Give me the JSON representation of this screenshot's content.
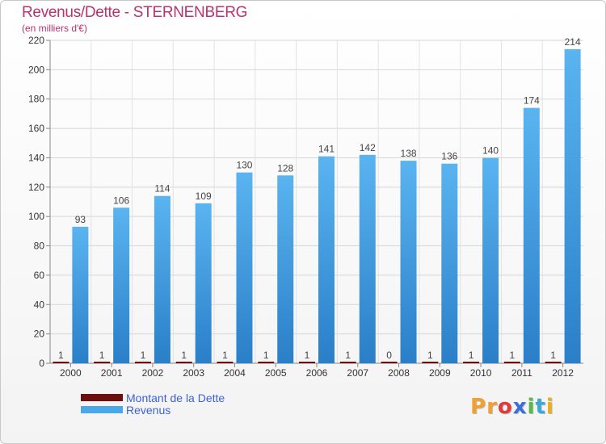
{
  "title": "Revenus/Dette - STERNENBERG",
  "subtitle": "(en milliers d'€)",
  "logo": {
    "letters": [
      "P",
      "r",
      "o",
      "x",
      "i",
      "t",
      "i"
    ],
    "colors": [
      "#f0a030",
      "#f0a030",
      "#e03a3a",
      "#3a6fd8",
      "#58b84a",
      "#3aa8d8",
      "#e8b020"
    ]
  },
  "legend": {
    "debt_label": "Montant de la Dette",
    "revenue_label": "Revenus"
  },
  "colors": {
    "debt": "#6b0f0f",
    "revenue": "#4aa8e8",
    "revenue_dark": "#2a7fc8",
    "title": "#b5336f",
    "legend_text": "#3a62d8"
  },
  "chart_data": {
    "type": "bar",
    "title": "Revenus/Dette - STERNENBERG",
    "subtitle": "(en milliers d'€)",
    "categories": [
      "2000",
      "2001",
      "2002",
      "2003",
      "2004",
      "2005",
      "2006",
      "2007",
      "2008",
      "2009",
      "2010",
      "2011",
      "2012"
    ],
    "series": [
      {
        "name": "Montant de la Dette",
        "values": [
          1,
          1,
          1,
          1,
          1,
          1,
          1,
          1,
          0,
          1,
          1,
          1,
          1
        ]
      },
      {
        "name": "Revenus",
        "values": [
          93,
          106,
          114,
          109,
          130,
          128,
          141,
          142,
          138,
          136,
          140,
          174,
          214
        ]
      }
    ],
    "ylim": [
      0,
      220
    ],
    "yticks": [
      0,
      20,
      40,
      60,
      80,
      100,
      120,
      140,
      160,
      180,
      200,
      220
    ],
    "grid": true,
    "legend": "bottom-left"
  }
}
